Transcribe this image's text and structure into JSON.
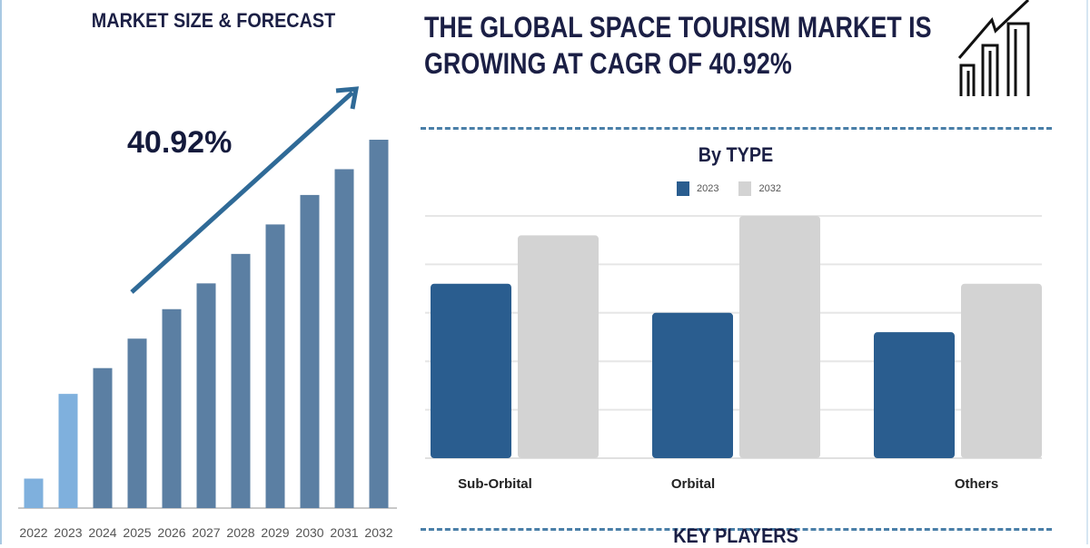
{
  "left_panel": {
    "title": "MARKET SIZE & FORECAST",
    "cagr_label": "40.92%"
  },
  "right_panel": {
    "title_line1": "THE GLOBAL SPACE TOURISM MARKET IS",
    "title_line2": "GROWING AT CAGR OF 40.92%",
    "icon": "growth-bar-chart-icon",
    "key_players_heading": "KEY PLAYERS"
  },
  "chart_data": [
    {
      "type": "bar",
      "title": "MARKET SIZE & FORECAST",
      "categories": [
        "2022",
        "2023",
        "2024",
        "2025",
        "2026",
        "2027",
        "2028",
        "2029",
        "2030",
        "2031",
        "2032"
      ],
      "values": [
        8,
        31,
        38,
        46,
        54,
        61,
        69,
        77,
        85,
        92,
        100
      ],
      "ylim": [
        0,
        100
      ],
      "grid": false,
      "annotation": "40.92%",
      "colors": {
        "historical": "#7fb0dd",
        "forecast": "#5b7fa3"
      },
      "highlighted_categories": [
        "2022",
        "2023"
      ]
    },
    {
      "type": "bar",
      "title": "By TYPE",
      "categories": [
        "Sub-Orbital",
        "Orbital",
        "Others"
      ],
      "series": [
        {
          "name": "2023",
          "values": [
            3.6,
            3.0,
            2.6
          ],
          "color": "#2a5d8f"
        },
        {
          "name": "2032",
          "values": [
            4.6,
            5.0,
            3.6
          ],
          "color": "#d3d3d3"
        }
      ],
      "ylim": [
        0,
        5
      ],
      "grid": true,
      "legend": "top"
    }
  ]
}
